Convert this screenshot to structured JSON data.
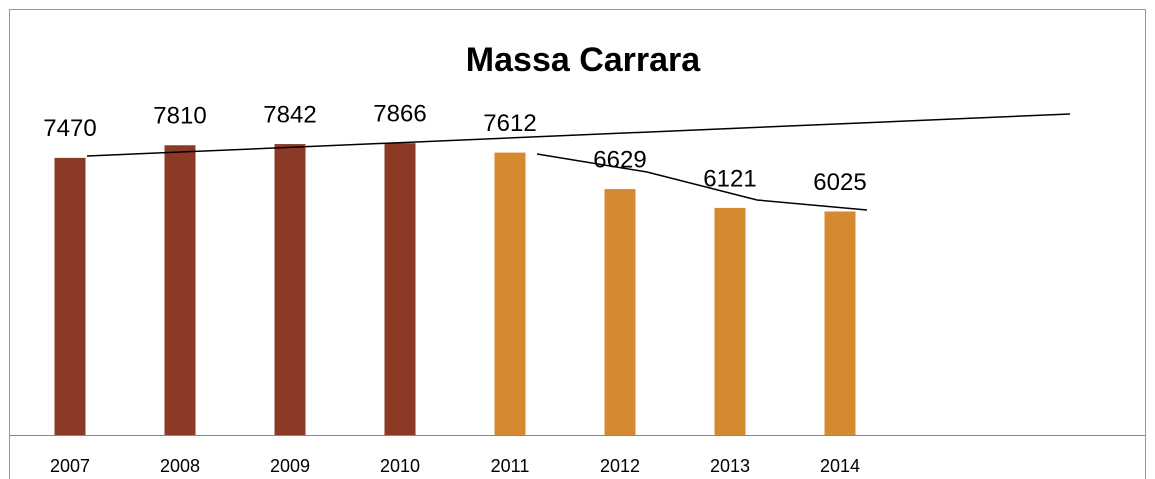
{
  "chart_data": {
    "type": "bar",
    "title": "Massa Carrara",
    "categories": [
      "2007",
      "2008",
      "2009",
      "2010",
      "2011",
      "2012",
      "2013",
      "2014"
    ],
    "values": [
      7470,
      7810,
      7842,
      7866,
      7612,
      6629,
      6121,
      6025
    ],
    "colors": [
      "#8b3a26",
      "#8b3a26",
      "#8b3a26",
      "#8b3a26",
      "#d68a30",
      "#d68a30",
      "#d68a30",
      "#d68a30"
    ]
  }
}
